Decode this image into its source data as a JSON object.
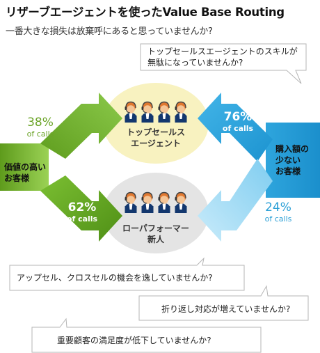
{
  "title": "リザーブエージェントを使ったValue Base Routing",
  "subtitle": "一番大きな損失は放棄呼にあると思っていませんか?",
  "callouts": {
    "top": [
      "トップセールスエージェントのスキルが",
      "無駄になっていませんか?"
    ],
    "upsell": "アップセル、クロスセルの機会を逸していませんか?",
    "repeat": "折り返し対応が増えていませんか?",
    "satisfaction": "重要顧客の満足度が低下していませんか?"
  },
  "segments": {
    "high_value": [
      "価値の高い",
      "お客様"
    ],
    "low_value": [
      "購入額の",
      "少ない",
      "お客様"
    ]
  },
  "teams": {
    "top_sales": [
      "トップセールス",
      "エージェント"
    ],
    "low_performer": [
      "ローパフォーマー",
      "新人"
    ]
  },
  "flows": {
    "high_to_top": {
      "pct": "38%",
      "unit": "of calls"
    },
    "high_to_low": {
      "pct": "62%",
      "unit": "of calls"
    },
    "low_to_top": {
      "pct": "76%",
      "unit": "of calls"
    },
    "low_to_low": {
      "pct": "24%",
      "unit": "of calls"
    }
  },
  "colors": {
    "green": "#6aa326",
    "green_dark": "#3d7a14",
    "blue": "#2a9fd6",
    "blue_light": "#a7dcf5",
    "top_circle": "#f8f2c0",
    "low_circle": "#e4e4e4"
  },
  "icons": [
    "agent-headset-icon"
  ]
}
